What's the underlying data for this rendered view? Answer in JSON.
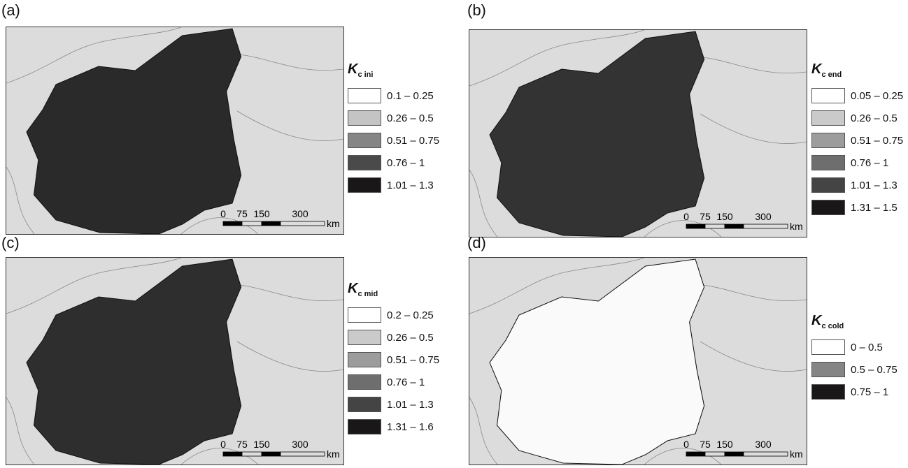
{
  "panels": [
    {
      "label": "(a)",
      "legend": {
        "symbol": "K",
        "subscript": "c ini",
        "items": [
          {
            "label": "0.1 – 0.25",
            "color": "#ffffff"
          },
          {
            "label": "0.26 – 0.5",
            "color": "#c4c4c4"
          },
          {
            "label": "0.51 – 0.75",
            "color": "#858585"
          },
          {
            "label": "0.76 – 1",
            "color": "#4a4a4a"
          },
          {
            "label": "1.01 – 1.3",
            "color": "#1a1718"
          }
        ]
      },
      "scale_bar": {
        "ticks": [
          "0",
          "75",
          "150",
          "300"
        ],
        "unit": "km"
      }
    },
    {
      "label": "(b)",
      "legend": {
        "symbol": "K",
        "subscript": "c end",
        "items": [
          {
            "label": "0.05 – 0.25",
            "color": "#ffffff"
          },
          {
            "label": "0.26 – 0.5",
            "color": "#cacaca"
          },
          {
            "label": "0.51 – 0.75",
            "color": "#9c9c9c"
          },
          {
            "label": "0.76 – 1",
            "color": "#6e6e6e"
          },
          {
            "label": "1.01 – 1.3",
            "color": "#444444"
          },
          {
            "label": "1.31 – 1.5",
            "color": "#1a1718"
          }
        ]
      },
      "scale_bar": {
        "ticks": [
          "0",
          "75",
          "150",
          "300"
        ],
        "unit": "km"
      }
    },
    {
      "label": "(c)",
      "legend": {
        "symbol": "K",
        "subscript": "c mid",
        "items": [
          {
            "label": "0.2 – 0.25",
            "color": "#ffffff"
          },
          {
            "label": "0.26 – 0.5",
            "color": "#cacaca"
          },
          {
            "label": "0.51 – 0.75",
            "color": "#9c9c9c"
          },
          {
            "label": "0.76 – 1",
            "color": "#6e6e6e"
          },
          {
            "label": "1.01 – 1.3",
            "color": "#444444"
          },
          {
            "label": "1.31 – 1.6",
            "color": "#1a1718"
          }
        ]
      },
      "scale_bar": {
        "ticks": [
          "0",
          "75",
          "150",
          "300"
        ],
        "unit": "km"
      }
    },
    {
      "label": "(d)",
      "legend": {
        "symbol": "K",
        "subscript": "c cold",
        "items": [
          {
            "label": "0 – 0.5",
            "color": "#ffffff"
          },
          {
            "label": "0.5 – 0.75",
            "color": "#858585"
          },
          {
            "label": "0.75 – 1",
            "color": "#1a1718"
          }
        ]
      },
      "scale_bar": {
        "ticks": [
          "0",
          "75",
          "150",
          "300"
        ],
        "unit": "km"
      }
    }
  ]
}
